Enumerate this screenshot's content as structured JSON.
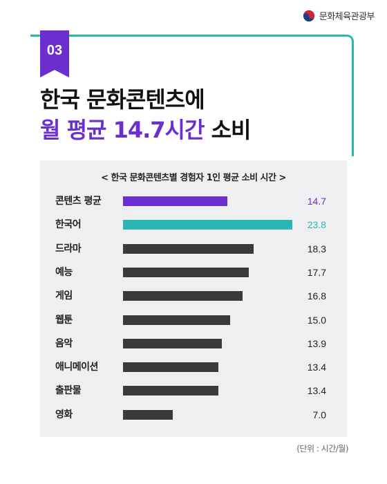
{
  "header": {
    "ministry": "문화체육관광부",
    "logo_icon": "taegeuk-emblem-icon",
    "badge_number": "03",
    "title_line1": "한국 문화콘텐츠에",
    "title_line2_accent": "월 평균 14.7시간",
    "title_line2_rest": " 소비"
  },
  "colors": {
    "accent_purple": "#6b2fd0",
    "accent_teal": "#2ab7b4",
    "bar_default": "#3a3a3a",
    "panel_bg": "#efeff2"
  },
  "chart_data": {
    "type": "bar",
    "orientation": "horizontal",
    "title": "< 한국 문화콘텐츠별 경험자 1인 평균 소비 시간 >",
    "categories": [
      "콘텐츠 평균",
      "한국어",
      "드라마",
      "예능",
      "게임",
      "웹툰",
      "음악",
      "애니메이션",
      "출판물",
      "영화"
    ],
    "values": [
      14.7,
      23.8,
      18.3,
      17.7,
      16.8,
      15.0,
      13.9,
      13.4,
      13.4,
      7.0
    ],
    "value_labels": [
      "14.7",
      "23.8",
      "18.3",
      "17.7",
      "16.8",
      "15.0",
      "13.9",
      "13.4",
      "13.4",
      "7.0"
    ],
    "highlight": {
      "0": "#6b2fd0",
      "1": "#2ab7b4"
    },
    "xlim": [
      0,
      26.5
    ],
    "unit_note": "(단위 : 시간/월)"
  }
}
